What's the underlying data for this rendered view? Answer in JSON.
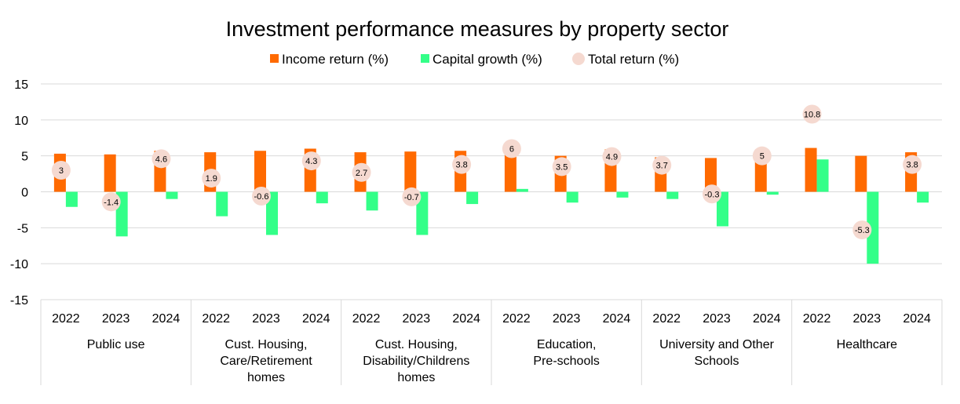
{
  "chart_data": {
    "type": "bar",
    "title": "Investment performance measures by property sector",
    "xlabel": "",
    "ylabel": "",
    "ylim": [
      -15,
      15
    ],
    "yticks": [
      15,
      10,
      5,
      0,
      -5,
      -10,
      -15
    ],
    "grid": true,
    "legend_position": "top",
    "groups": [
      {
        "label": "Public use",
        "years": [
          "2022",
          "2023",
          "2024"
        ]
      },
      {
        "label": "Cust. Housing, Care/Retirement homes",
        "years": [
          "2022",
          "2023",
          "2024"
        ]
      },
      {
        "label": "Cust. Housing, Disability/Childrens homes",
        "years": [
          "2022",
          "2023",
          "2024"
        ]
      },
      {
        "label": "Education, Pre-schools",
        "years": [
          "2022",
          "2023",
          "2024"
        ]
      },
      {
        "label": "University and Other Schools",
        "years": [
          "2022",
          "2023",
          "2024"
        ]
      },
      {
        "label": "Healthcare",
        "years": [
          "2022",
          "2023",
          "2024"
        ]
      }
    ],
    "series": [
      {
        "name": "Income return (%)",
        "kind": "bar",
        "color": "#FF6A00",
        "values": [
          5.3,
          5.2,
          5.7,
          5.5,
          5.7,
          6.0,
          5.5,
          5.6,
          5.7,
          5.7,
          5.0,
          5.9,
          4.8,
          4.7,
          5.5,
          6.1,
          5.0,
          5.5
        ]
      },
      {
        "name": "Capital growth (%)",
        "kind": "bar",
        "color": "#33FF88",
        "values": [
          -2.1,
          -6.2,
          -1.0,
          -3.4,
          -6.0,
          -1.6,
          -2.6,
          -6.0,
          -1.7,
          0.4,
          -1.5,
          -0.8,
          -1.0,
          -4.8,
          -0.4,
          4.5,
          -10.0,
          -1.5
        ]
      },
      {
        "name": "Total return (%)",
        "kind": "marker",
        "color": "#F5D9D0",
        "values": [
          3,
          -1.4,
          4.6,
          1.9,
          -0.6,
          4.3,
          2.7,
          -0.7,
          3.8,
          6,
          3.5,
          4.9,
          3.7,
          -0.3,
          5,
          10.8,
          -5.3,
          3.8
        ]
      }
    ]
  }
}
